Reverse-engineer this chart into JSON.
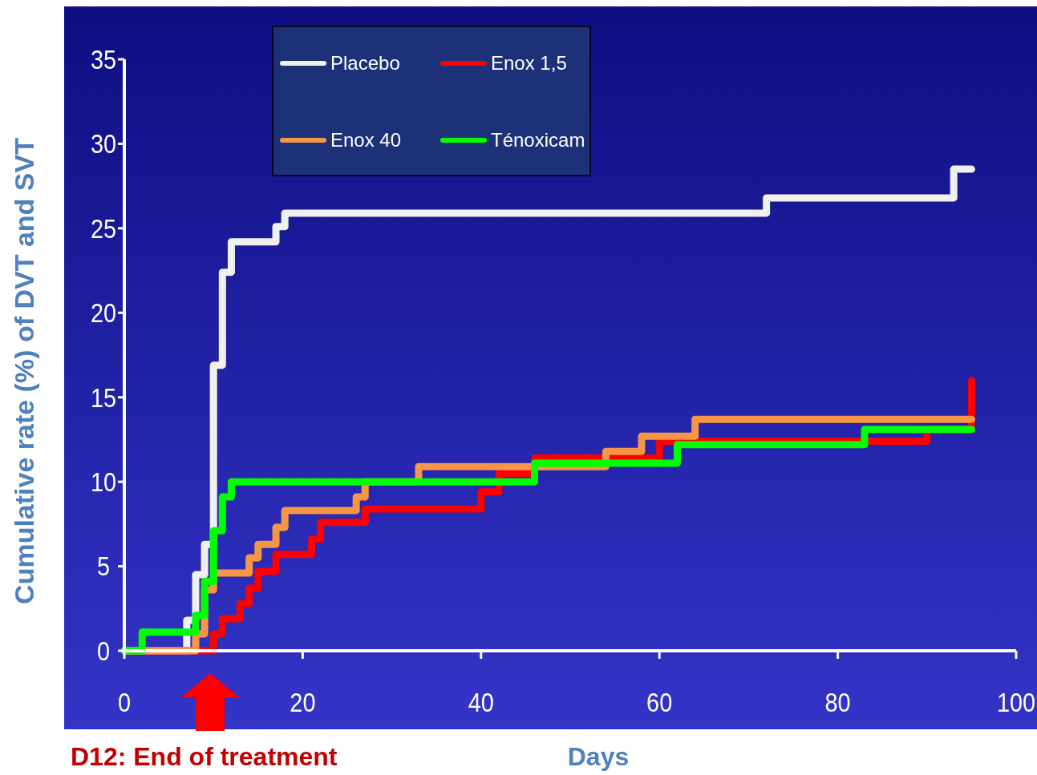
{
  "chart_data": {
    "type": "step",
    "xlabel": "Days",
    "ylabel": "Cumulative rate (%) of DVT and SVT",
    "xlim": [
      0,
      100
    ],
    "ylim": [
      0,
      35
    ],
    "xticks": [
      0,
      20,
      40,
      60,
      80,
      100
    ],
    "yticks": [
      0,
      5,
      10,
      15,
      20,
      25,
      30,
      35
    ],
    "grid": false,
    "legend": "top",
    "line_style": "solid",
    "marker": "none",
    "annotations": [
      "D12: End of treatment"
    ],
    "series": [
      {
        "name": "Placebo",
        "color": "#f0f0f0",
        "x": [
          0,
          7,
          8,
          9,
          10,
          11,
          12,
          17,
          18,
          72,
          93,
          95
        ],
        "values": [
          0,
          1.8,
          4.5,
          6.3,
          16.9,
          22.4,
          24.2,
          25.1,
          25.9,
          26.8,
          28.5,
          28.5
        ]
      },
      {
        "name": "Enox 1,5",
        "color": "#ff0000",
        "x": [
          0,
          10,
          11,
          13,
          14,
          15,
          17,
          21,
          22,
          27,
          40,
          42,
          46,
          60,
          90,
          95
        ],
        "values": [
          0,
          1,
          1.9,
          2.8,
          3.7,
          4.7,
          5.7,
          6.6,
          7.6,
          8.4,
          9.4,
          10.5,
          11.4,
          12.4,
          13.1,
          16
        ]
      },
      {
        "name": "Enox 40",
        "color": "#f79646",
        "x": [
          0,
          8,
          9,
          10,
          14,
          15,
          17,
          18,
          26,
          27,
          33,
          54,
          58,
          64,
          95
        ],
        "values": [
          0,
          1,
          3.6,
          4.6,
          5.5,
          6.3,
          7.3,
          8.3,
          9.1,
          10,
          10.9,
          11.8,
          12.7,
          13.7,
          13.7
        ]
      },
      {
        "name": "Ténoxicam",
        "color": "#00ff00",
        "x": [
          0,
          2,
          8,
          9,
          10,
          11,
          12,
          46,
          62,
          83,
          95
        ],
        "values": [
          0,
          1.1,
          2.1,
          4.1,
          7.1,
          9.1,
          10,
          11.1,
          12.2,
          13.1,
          13.1
        ]
      }
    ]
  }
}
